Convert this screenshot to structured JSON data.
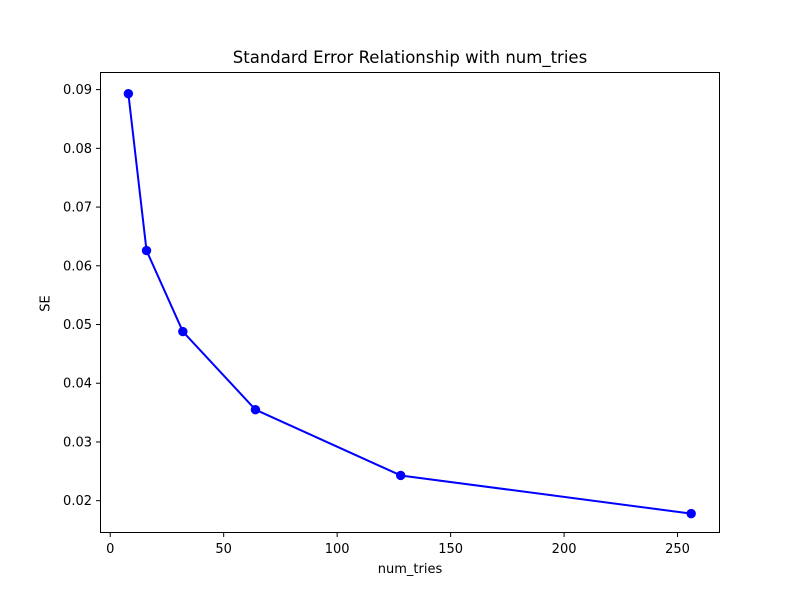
{
  "chart_data": {
    "type": "line",
    "title": "Standard Error Relationship with num_tries",
    "xlabel": "num_tries",
    "ylabel": "SE",
    "series": [
      {
        "name": "SE",
        "x": [
          8,
          16,
          32,
          64,
          128,
          256
        ],
        "y": [
          0.0893,
          0.0626,
          0.0488,
          0.0355,
          0.0243,
          0.0178
        ]
      }
    ],
    "xlim": [
      -4.5,
      268.7
    ],
    "ylim": [
      0.0145,
      0.093
    ],
    "x_ticks": [
      0,
      50,
      100,
      150,
      200,
      250
    ],
    "x_tick_labels": [
      "0",
      "50",
      "100",
      "150",
      "200",
      "250"
    ],
    "y_ticks": [
      0.02,
      0.03,
      0.04,
      0.05,
      0.06,
      0.07,
      0.08,
      0.09
    ],
    "y_tick_labels": [
      "0.02",
      "0.03",
      "0.04",
      "0.05",
      "0.06",
      "0.07",
      "0.08",
      "0.09"
    ],
    "line_color": "#0000ff",
    "axis_color": "#000000",
    "background_color": "#ffffff",
    "marker": "o",
    "grid": false,
    "legend": null
  }
}
